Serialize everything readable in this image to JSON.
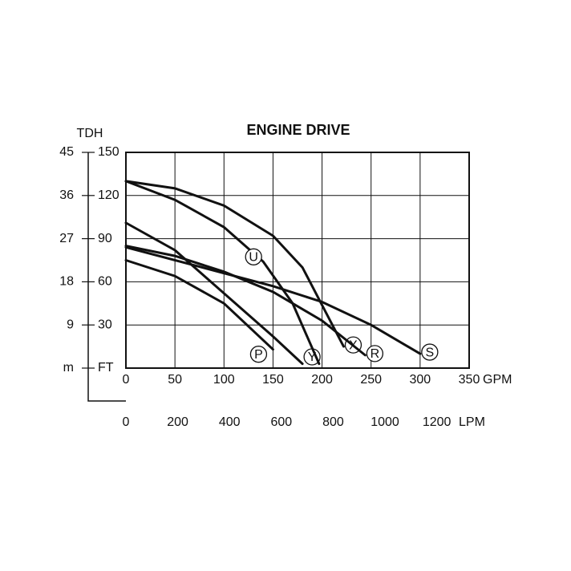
{
  "chart_data": {
    "type": "line",
    "title": "ENGINE DRIVE",
    "ylabel": "TDH",
    "xlabel": "GPM",
    "x2label": "LPM",
    "xlim": [
      0,
      350
    ],
    "xticks": [
      0,
      50,
      100,
      150,
      200,
      250,
      300,
      350
    ],
    "x2lim": [
      0,
      1325
    ],
    "x2ticks": [
      0,
      200,
      400,
      600,
      800,
      1000,
      1200
    ],
    "ylim": [
      0,
      150
    ],
    "yticks": [
      {
        "value": 0,
        "label": "FT"
      },
      30,
      60,
      90,
      120,
      150
    ],
    "y2lim": [
      0,
      45
    ],
    "y2ticks": [
      {
        "value": 0,
        "label": "m"
      },
      9,
      18,
      27,
      36,
      45
    ],
    "grid": true,
    "color": "#111111",
    "series": [
      {
        "name": "P",
        "x": [
          0,
          50,
          100,
          150
        ],
        "values": [
          75,
          64,
          45,
          13
        ]
      },
      {
        "name": "Y",
        "x": [
          0,
          50,
          100,
          150,
          180
        ],
        "values": [
          101,
          82,
          52,
          22,
          3
        ]
      },
      {
        "name": "U",
        "x": [
          0,
          50,
          100,
          140,
          170,
          197
        ],
        "values": [
          130,
          117,
          98,
          74,
          45,
          3
        ]
      },
      {
        "name": "X",
        "x": [
          0,
          50,
          100,
          150,
          180,
          222
        ],
        "values": [
          130,
          125,
          113,
          92,
          70,
          15
        ]
      },
      {
        "name": "R",
        "x": [
          0,
          50,
          100,
          150,
          200,
          244
        ],
        "values": [
          85,
          78,
          67,
          53,
          33,
          9
        ]
      },
      {
        "name": "S",
        "x": [
          0,
          100,
          150,
          200,
          250,
          300
        ],
        "values": [
          84,
          66,
          57,
          46,
          30,
          10
        ]
      }
    ]
  }
}
